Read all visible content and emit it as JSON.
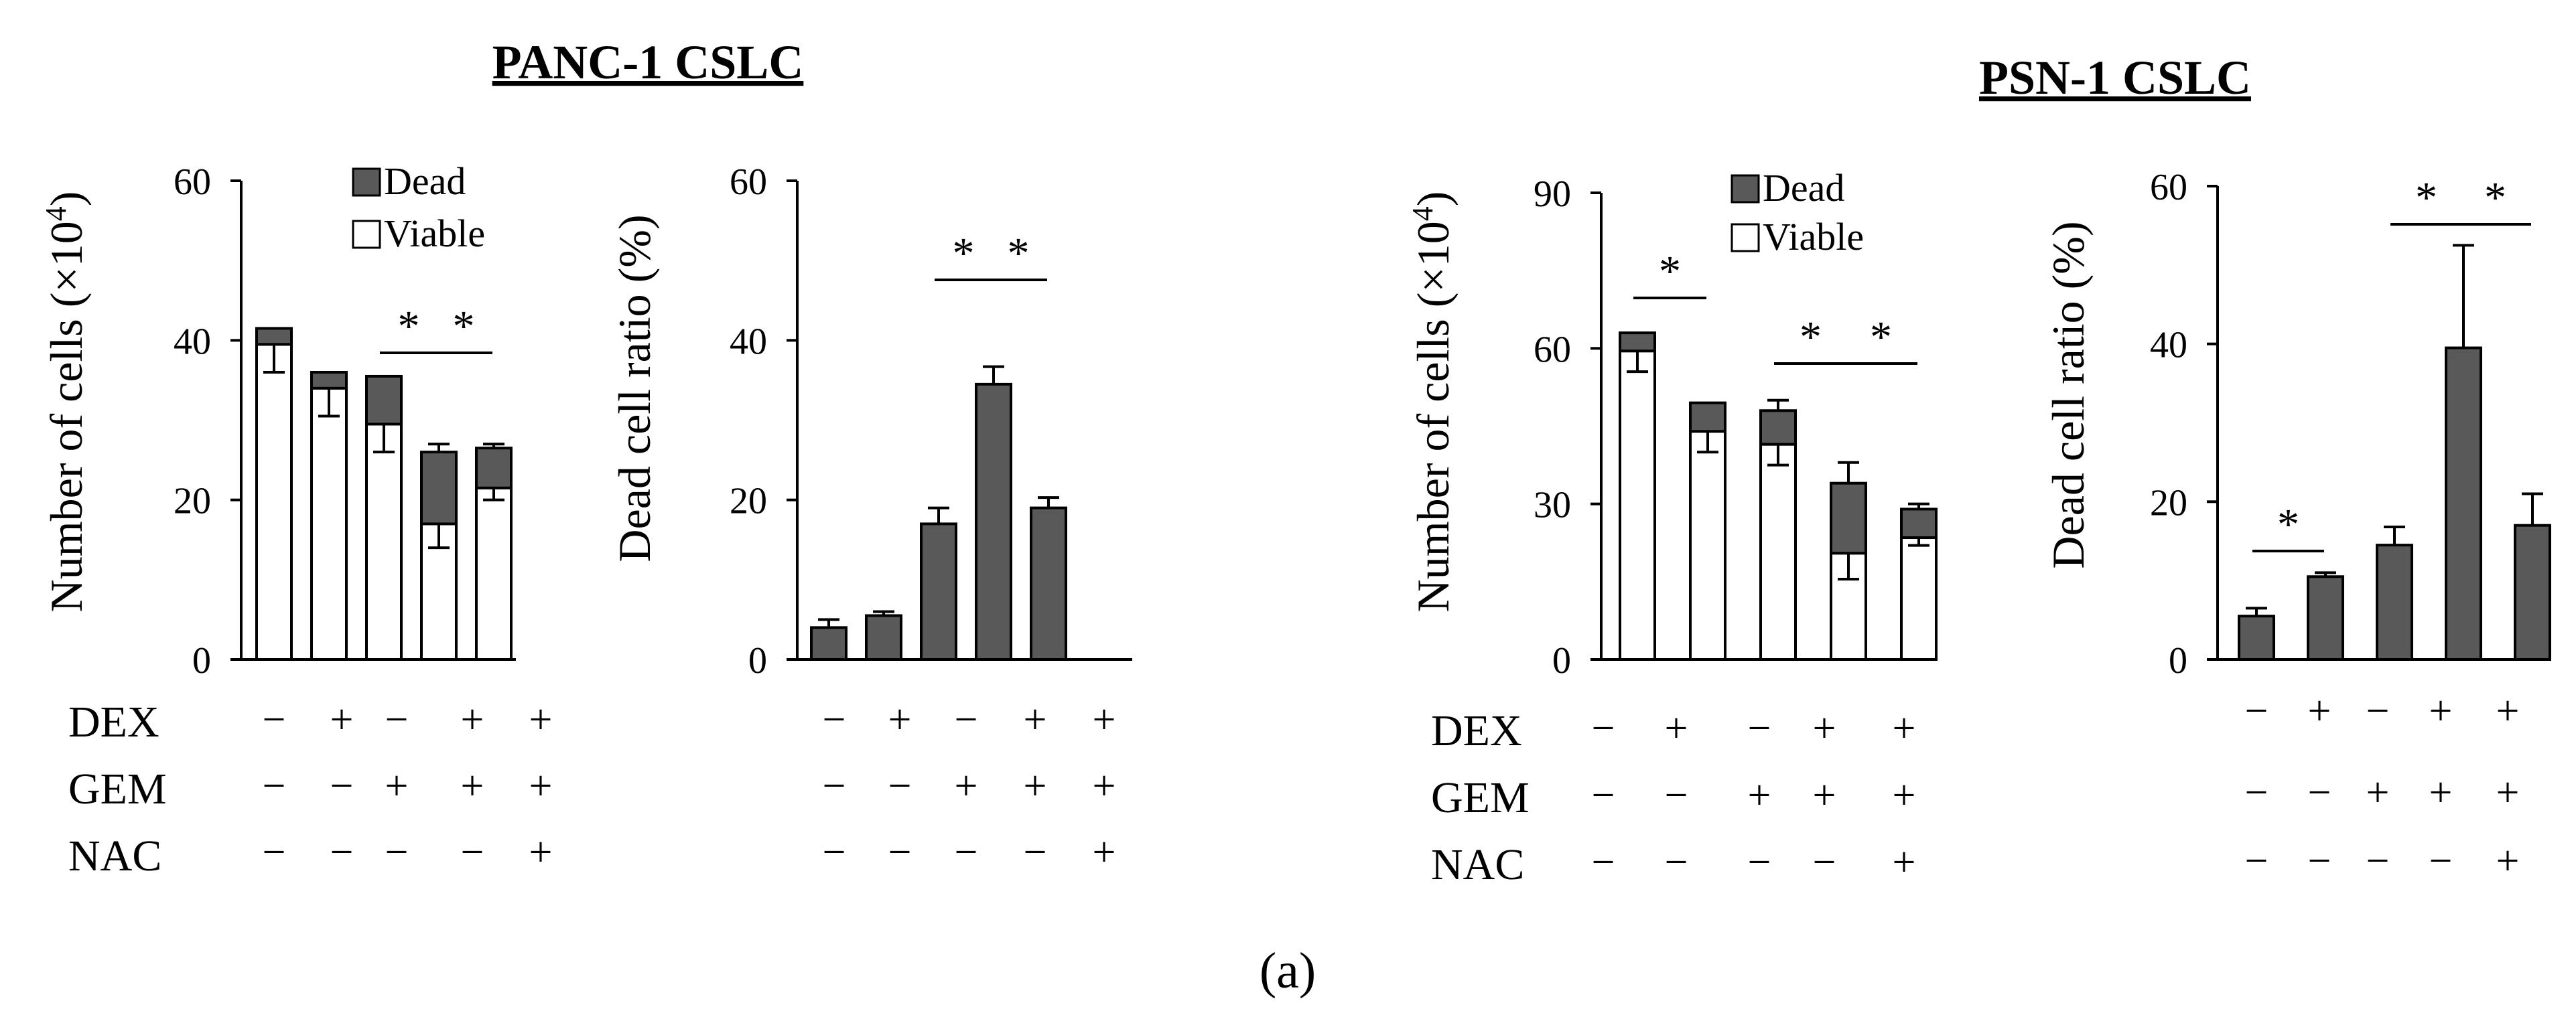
{
  "caption": "(a)",
  "colors": {
    "dead": "#595959",
    "viable": "#ffffff",
    "stroke": "#000000"
  },
  "condition_labels": [
    "DEX",
    "GEM",
    "NAC"
  ],
  "panels": [
    {
      "title": "PANC-1 CSLC",
      "conditions": {
        "DEX": [
          "−",
          "+",
          "−",
          "+",
          "+"
        ],
        "GEM": [
          "−",
          "−",
          "+",
          "+",
          "+"
        ],
        "NAC": [
          "−",
          "−",
          "−",
          "−",
          "+"
        ]
      }
    },
    {
      "title": "PSN-1 CSLC",
      "conditions": {
        "DEX": [
          "−",
          "+",
          "−",
          "+",
          "+"
        ],
        "GEM": [
          "−",
          "−",
          "+",
          "+",
          "+"
        ],
        "NAC": [
          "−",
          "−",
          "−",
          "−",
          "+"
        ]
      }
    }
  ],
  "chart_data": [
    {
      "id": "panc1-cells",
      "type": "bar",
      "stacked": true,
      "ylabel": "Number of cells (×10",
      "ylabel_sup": "4",
      "ylabel_end": ")",
      "ylim": [
        0,
        60
      ],
      "yticks": [
        0,
        20,
        40,
        60
      ],
      "legend": [
        "Dead",
        "Viable"
      ],
      "categories": [
        "1",
        "2",
        "3",
        "4",
        "5"
      ],
      "series": [
        {
          "name": "Viable",
          "values": [
            39.5,
            34,
            29.5,
            17,
            21.5
          ],
          "error": [
            3.5,
            3.5,
            3.5,
            3,
            1.5
          ]
        },
        {
          "name": "Dead",
          "values": [
            2,
            2,
            6,
            9,
            5
          ],
          "error": [
            0,
            0,
            0,
            1,
            0.5
          ]
        }
      ],
      "significance": [
        {
          "from": 2,
          "to": 3,
          "label": "*"
        },
        {
          "from": 3,
          "to": 4,
          "label": "*"
        }
      ]
    },
    {
      "id": "panc1-ratio",
      "type": "bar",
      "ylabel": "Dead cell ratio (%)",
      "ylim": [
        0,
        60
      ],
      "yticks": [
        0,
        20,
        40,
        60
      ],
      "categories": [
        "1",
        "2",
        "3",
        "4",
        "5"
      ],
      "series": [
        {
          "name": "Dead",
          "values": [
            4,
            5.5,
            17,
            34.5,
            19
          ],
          "error": [
            1,
            0.5,
            2,
            2.2,
            1.3
          ]
        }
      ],
      "significance": [
        {
          "from": 2,
          "to": 3,
          "label": "*"
        },
        {
          "from": 3,
          "to": 4,
          "label": "*"
        }
      ]
    },
    {
      "id": "psn1-cells",
      "type": "bar",
      "stacked": true,
      "ylabel": "Number of cells (×10",
      "ylabel_sup": "4",
      "ylabel_end": ")",
      "ylim": [
        0,
        90
      ],
      "yticks": [
        0,
        30,
        60,
        90
      ],
      "legend": [
        "Dead",
        "Viable"
      ],
      "categories": [
        "1",
        "2",
        "3",
        "4",
        "5"
      ],
      "series": [
        {
          "name": "Viable",
          "values": [
            59.5,
            44,
            41.5,
            20.5,
            23.5
          ],
          "error": [
            4,
            4,
            4,
            5,
            1.5
          ]
        },
        {
          "name": "Dead",
          "values": [
            3.5,
            5.5,
            6.5,
            13.5,
            5.5
          ],
          "error": [
            0,
            0,
            2,
            4,
            1
          ]
        }
      ],
      "significance": [
        {
          "from": 0,
          "to": 1,
          "label": "*"
        },
        {
          "from": 2,
          "to": 3,
          "label": "*"
        },
        {
          "from": 3,
          "to": 4,
          "label": "*"
        }
      ]
    },
    {
      "id": "psn1-ratio",
      "type": "bar",
      "ylabel": "Dead cell ratio (%)",
      "ylim": [
        0,
        60
      ],
      "yticks": [
        0,
        20,
        40,
        60
      ],
      "categories": [
        "1",
        "2",
        "3",
        "4",
        "5"
      ],
      "series": [
        {
          "name": "Dead",
          "values": [
            5.5,
            10.5,
            14.5,
            39.5,
            17
          ],
          "error": [
            1,
            0.5,
            2.3,
            13,
            4
          ]
        }
      ],
      "significance": [
        {
          "from": 0,
          "to": 1,
          "label": "*"
        },
        {
          "from": 2,
          "to": 3,
          "label": "*"
        },
        {
          "from": 3,
          "to": 4,
          "label": "*"
        }
      ]
    }
  ]
}
